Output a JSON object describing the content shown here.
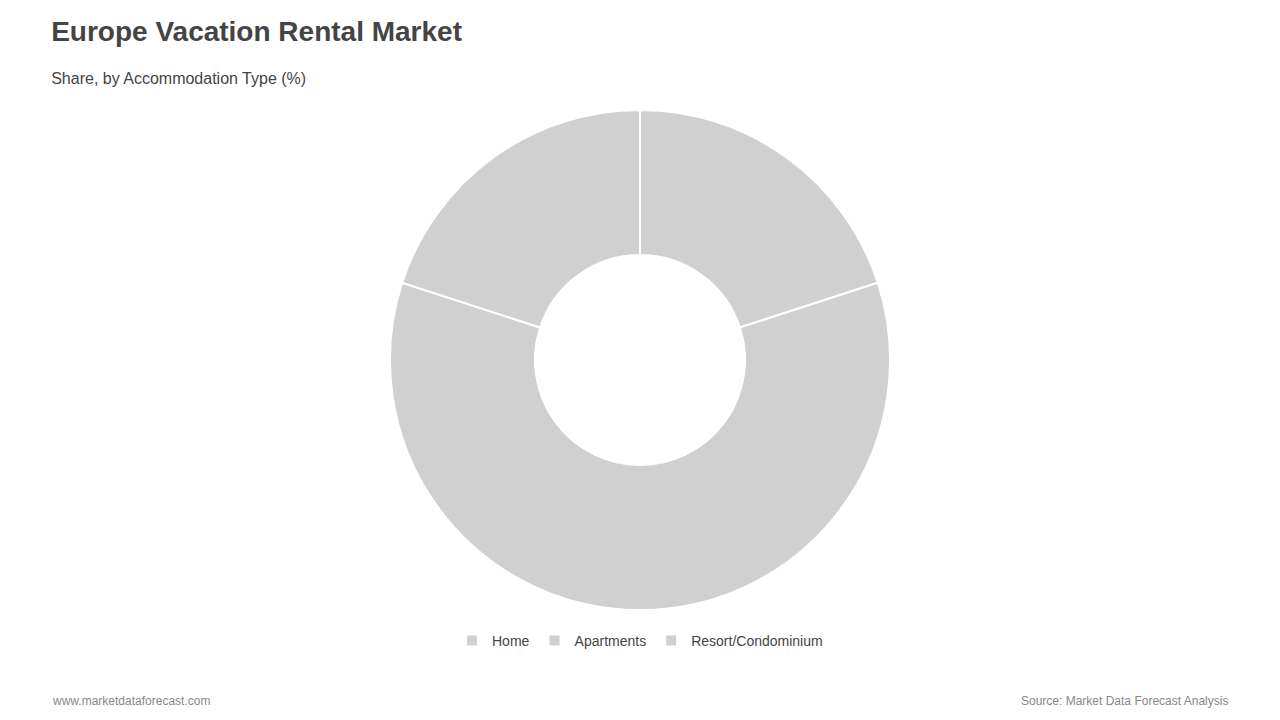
{
  "chart_data": {
    "type": "donut",
    "title": "Europe Vacation Rental Market",
    "subtitle": "Share, by Accommodation Type (%)",
    "categories": [
      "Home",
      "Apartments",
      "Resort/Condominium"
    ],
    "values": [
      20,
      60,
      20
    ],
    "color": "#d0d0d0",
    "legend": "bottom",
    "annotations": [
      "www.marketdataforecast.com",
      "Source: Market Data Forecast Analysis"
    ]
  }
}
